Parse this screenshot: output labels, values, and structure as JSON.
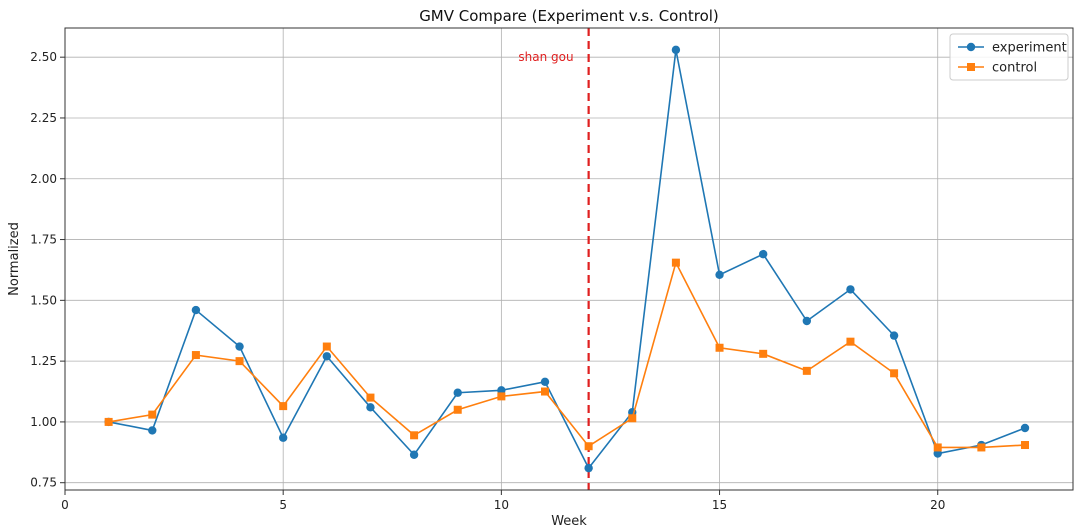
{
  "chart_data": {
    "type": "line",
    "title": "GMV Compare (Experiment v.s. Control)",
    "xlabel": "Week",
    "ylabel": "Normalized",
    "xlim": [
      0,
      23.1
    ],
    "ylim": [
      0.72,
      2.62
    ],
    "x_ticks": [
      0,
      5,
      10,
      15,
      20
    ],
    "y_ticks": [
      0.75,
      1.0,
      1.25,
      1.5,
      1.75,
      2.0,
      2.25,
      2.5
    ],
    "x_tick_labels": [
      "0",
      "5",
      "10",
      "15",
      "20"
    ],
    "y_tick_labels": [
      "0.75",
      "1.00",
      "1.25",
      "1.50",
      "1.75",
      "2.00",
      "2.25",
      "2.50"
    ],
    "grid": true,
    "legend_position": "top-right",
    "x": [
      1,
      2,
      3,
      4,
      5,
      6,
      7,
      8,
      9,
      10,
      11,
      12,
      13,
      14,
      15,
      16,
      17,
      18,
      19,
      20,
      21,
      22
    ],
    "series": [
      {
        "name": "experiment",
        "color": "#1f77b4",
        "marker": "circle",
        "values": [
          1.0,
          0.965,
          1.46,
          1.31,
          0.935,
          1.27,
          1.06,
          0.865,
          1.12,
          1.13,
          1.165,
          0.81,
          1.04,
          2.53,
          1.605,
          1.69,
          1.415,
          1.545,
          1.355,
          0.87,
          0.905,
          0.975
        ]
      },
      {
        "name": "control",
        "color": "#ff7f0e",
        "marker": "square",
        "values": [
          1.0,
          1.03,
          1.275,
          1.25,
          1.065,
          1.31,
          1.1,
          0.945,
          1.05,
          1.105,
          1.125,
          0.9,
          1.015,
          1.655,
          1.305,
          1.28,
          1.21,
          1.33,
          1.2,
          0.895,
          0.895,
          0.905
        ]
      }
    ],
    "annotations": [
      {
        "type": "vline",
        "x": 12,
        "color": "#e02020",
        "style": "dashed",
        "label": "shan gou"
      }
    ]
  }
}
